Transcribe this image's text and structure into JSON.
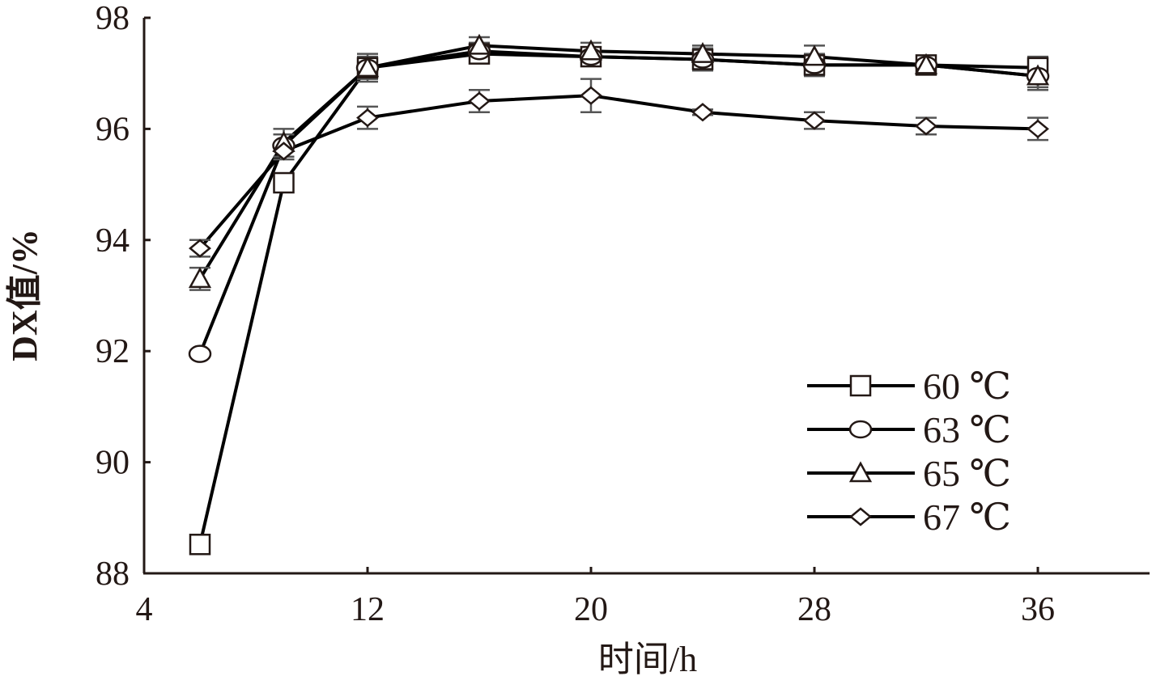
{
  "chart_data": {
    "type": "line",
    "x_label": "时间/h",
    "y_label": "DX值/%",
    "x": [
      6,
      9,
      12,
      16,
      20,
      24,
      28,
      32,
      36
    ],
    "xlim": [
      4,
      40
    ],
    "xticks": [
      4,
      12,
      20,
      28,
      36
    ],
    "ylim": [
      88,
      98
    ],
    "yticks": [
      88,
      90,
      92,
      94,
      96,
      98
    ],
    "legend": "lower right",
    "grid": false,
    "series": [
      {
        "name": "60 ℃",
        "color": "#000000",
        "marker": "square",
        "values": [
          88.52,
          95.03,
          97.1,
          97.35,
          97.3,
          97.25,
          97.15,
          97.15,
          97.1
        ],
        "errors": [
          0.05,
          0.15,
          0.15,
          0.15,
          0.15,
          0.15,
          0.15,
          0.1,
          0.2
        ]
      },
      {
        "name": "63 ℃",
        "color": "#000000",
        "marker": "circle",
        "values": [
          91.95,
          95.7,
          97.1,
          97.4,
          97.3,
          97.25,
          97.15,
          97.15,
          96.95
        ],
        "errors": [
          0.05,
          0.2,
          0.2,
          0.15,
          0.15,
          0.2,
          0.2,
          0.15,
          0.2
        ]
      },
      {
        "name": "65 ℃",
        "color": "#000000",
        "marker": "triangle",
        "values": [
          93.3,
          95.75,
          97.1,
          97.5,
          97.4,
          97.35,
          97.3,
          97.15,
          96.95
        ],
        "errors": [
          0.2,
          0.25,
          0.25,
          0.15,
          0.15,
          0.15,
          0.2,
          0.1,
          0.25
        ]
      },
      {
        "name": "67 ℃",
        "color": "#000000",
        "marker": "diamond",
        "values": [
          93.85,
          95.6,
          96.2,
          96.5,
          96.6,
          96.3,
          96.15,
          96.05,
          96.0
        ],
        "errors": [
          0.15,
          0.15,
          0.2,
          0.2,
          0.3,
          0.05,
          0.15,
          0.15,
          0.2
        ]
      }
    ]
  }
}
